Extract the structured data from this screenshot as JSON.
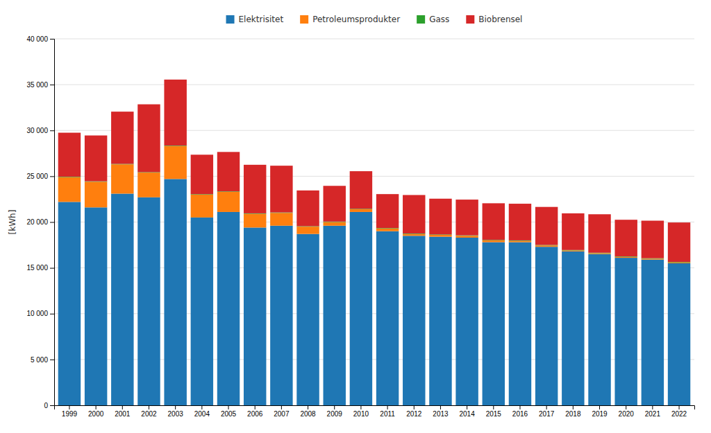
{
  "chart_data": {
    "type": "bar",
    "stacked": true,
    "ylabel": "[kWh]",
    "categories": [
      "1999",
      "2000",
      "2001",
      "2002",
      "2003",
      "2004",
      "2005",
      "2006",
      "2007",
      "2008",
      "2009",
      "2010",
      "2011",
      "2012",
      "2013",
      "2014",
      "2015",
      "2016",
      "2017",
      "2018",
      "2019",
      "2020",
      "2021",
      "2022"
    ],
    "series": [
      {
        "name": "Elektrisitet",
        "values": [
          22200,
          21600,
          23100,
          22700,
          24700,
          20500,
          21100,
          19400,
          19600,
          18700,
          19600,
          21100,
          19000,
          18500,
          18400,
          18300,
          17800,
          17800,
          17300,
          16800,
          16500,
          16100,
          15900,
          15500
        ]
      },
      {
        "name": "Petroleumsprodukter",
        "values": [
          2700,
          2800,
          3200,
          2700,
          3600,
          2500,
          2200,
          1500,
          1400,
          800,
          400,
          300,
          300,
          200,
          200,
          200,
          200,
          150,
          150,
          100,
          100,
          100,
          100,
          100
        ]
      },
      {
        "name": "Gass",
        "values": [
          50,
          50,
          50,
          50,
          50,
          50,
          50,
          50,
          50,
          50,
          50,
          50,
          50,
          50,
          50,
          50,
          50,
          50,
          50,
          50,
          50,
          50,
          50,
          50
        ]
      },
      {
        "name": "Biobrensel",
        "values": [
          4800,
          5000,
          5700,
          7400,
          7200,
          4300,
          4300,
          5300,
          5100,
          3900,
          3900,
          4100,
          3700,
          4200,
          3900,
          3900,
          4000,
          4000,
          4150,
          4000,
          4200,
          4000,
          4100,
          4300
        ]
      }
    ],
    "ylim": [
      0,
      40000
    ],
    "yticks": [
      0,
      {
        "value": 5000,
        "label": "5 000"
      },
      {
        "value": 10000,
        "label": "10 000"
      },
      {
        "value": 15000,
        "label": "15 000"
      },
      {
        "value": 20000,
        "label": "20 000"
      },
      {
        "value": 25000,
        "label": "25 000"
      },
      {
        "value": 30000,
        "label": "30 000"
      },
      {
        "value": 35000,
        "label": "35 000"
      },
      {
        "value": 40000,
        "label": "40 000"
      }
    ],
    "grid": true,
    "legend": "top"
  }
}
